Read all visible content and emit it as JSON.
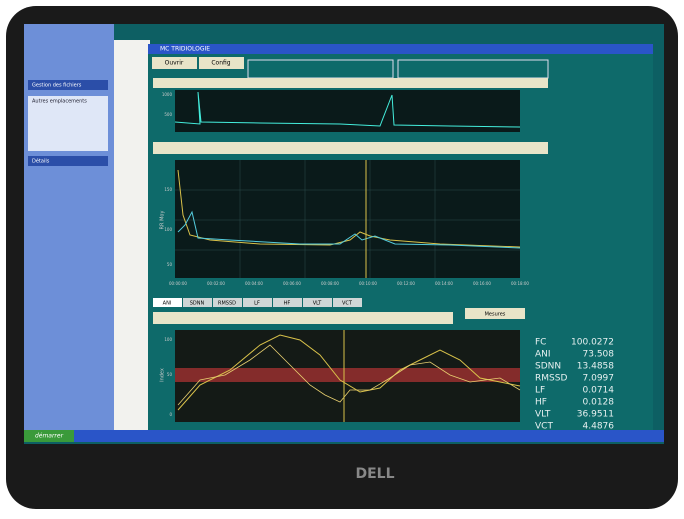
{
  "window": {
    "title": "MC TRIDIOLOGIE",
    "buttons": [
      "Ouvrir",
      "Config"
    ]
  },
  "left_panel": {
    "sections": [
      "Gestion des fichiers",
      "Autres emplacements",
      "Détails"
    ]
  },
  "charts": {
    "top": {
      "yticks": [
        "1000",
        "500"
      ]
    },
    "middle": {
      "y_label": "RR Moy",
      "yticks": [
        "150",
        "100",
        "50"
      ],
      "xticks": [
        "00:00:00",
        "00:02:00",
        "00:04:00",
        "00:06:00",
        "00:08:00",
        "00:10:00",
        "00:12:00",
        "00:14:00",
        "00:16:00",
        "00:18:00"
      ]
    },
    "bottom": {
      "y_label": "Index",
      "yticks": [
        "100",
        "50",
        "0"
      ]
    }
  },
  "tabs": [
    "ANI",
    "SDNN",
    "RMSSD",
    "LF",
    "HF",
    "VLT",
    "VCT"
  ],
  "button": "Mesures",
  "stats": [
    {
      "label": "FC",
      "value": 100.0272
    },
    {
      "label": "ANI",
      "value": 73.508
    },
    {
      "label": "SDNN",
      "value": 13.4858
    },
    {
      "label": "RMSSD",
      "value": 7.0997
    },
    {
      "label": "LF",
      "value": 0.0714
    },
    {
      "label": "HF",
      "value": 0.0128
    },
    {
      "label": "VLT",
      "value": 36.9511
    },
    {
      "label": "VCT",
      "value": 4.4876
    }
  ],
  "taskbar": {
    "start": "démarrer"
  },
  "monitor": {
    "brand": "DELL"
  }
}
